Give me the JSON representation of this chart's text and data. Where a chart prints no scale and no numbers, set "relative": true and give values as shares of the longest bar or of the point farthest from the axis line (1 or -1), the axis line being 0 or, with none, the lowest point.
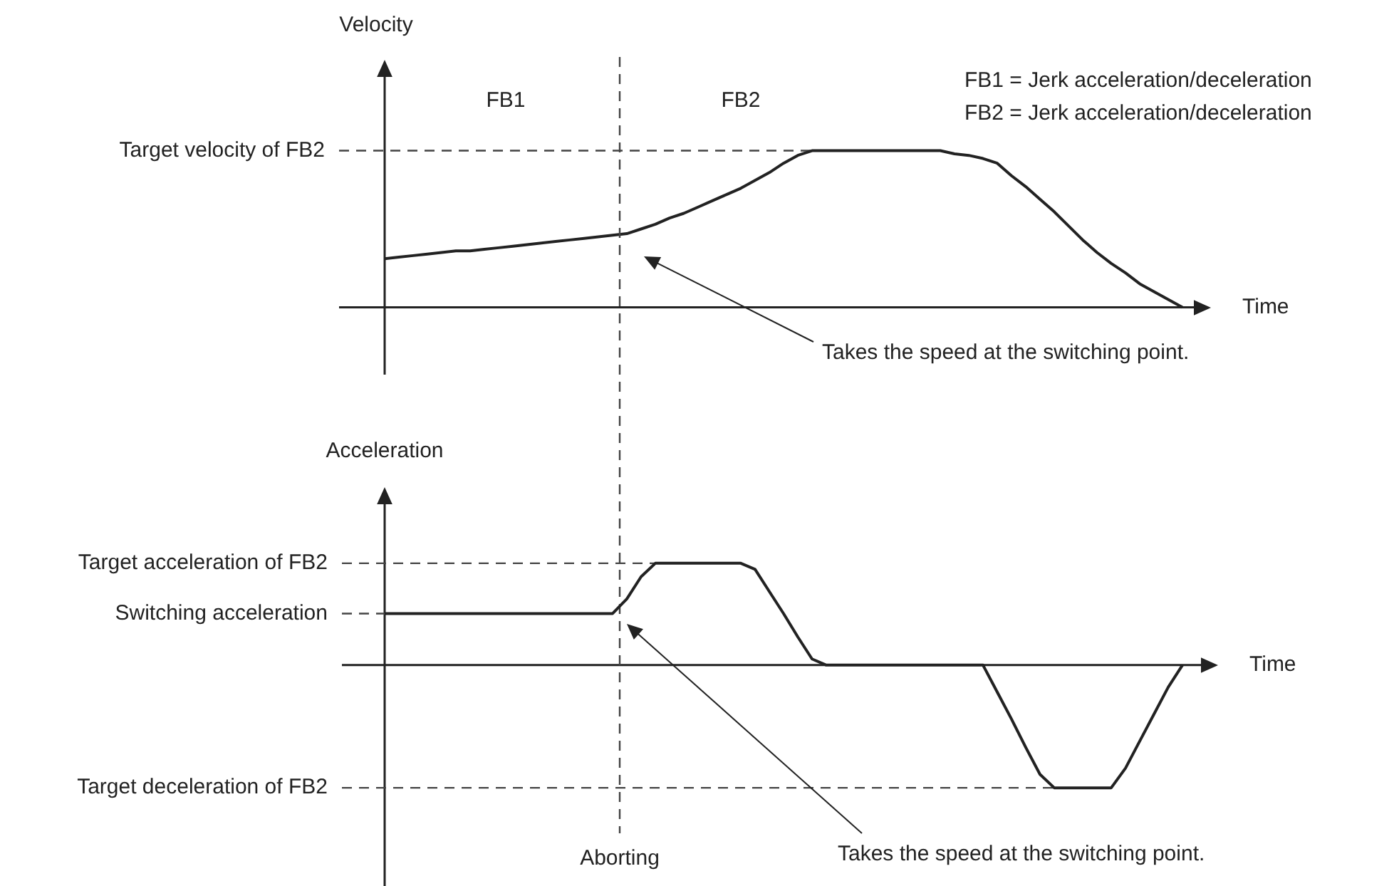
{
  "chart_data": [
    {
      "type": "line",
      "relative": true,
      "xlabel": "Time",
      "ylabel": "Velocity",
      "categories": [
        null,
        null,
        null,
        null,
        null,
        null,
        null,
        null,
        null,
        null,
        null,
        null,
        null,
        null,
        null,
        null,
        null,
        null,
        null,
        null,
        null,
        null,
        null,
        null,
        null,
        null,
        null,
        null,
        null,
        null,
        null,
        null,
        null,
        null,
        null,
        null,
        null,
        null,
        null,
        null,
        null,
        null,
        null,
        null,
        null,
        null,
        null,
        null,
        null,
        null,
        null,
        null,
        null,
        null,
        null,
        null,
        null
      ],
      "series": [
        {
          "color": "#222222",
          "values": [
            0.31,
            0.32,
            0.33,
            0.34,
            0.35,
            0.36,
            0.36,
            0.37,
            0.38,
            0.39,
            0.4,
            0.41,
            0.42,
            0.43,
            0.44,
            0.45,
            0.46,
            0.47,
            0.5,
            0.53,
            0.57,
            0.6,
            0.64,
            0.68,
            0.72,
            0.76,
            0.81,
            0.86,
            0.92,
            0.97,
            1,
            1,
            1,
            1,
            1,
            1,
            1,
            1,
            1,
            1,
            0.98,
            0.97,
            0.95,
            0.92,
            0.84,
            0.77,
            0.69,
            0.61,
            0.52,
            0.43,
            0.35,
            0.28,
            0.22,
            0.15,
            0.1,
            0.05,
            0
          ]
        }
      ],
      "ref_lines": [
        {
          "axis": "y",
          "value": 1,
          "label": "Target velocity of FB2"
        }
      ],
      "annotations": [
        "FB1",
        "FB2",
        "FB1 = Jerk acceleration/deceleration",
        "FB2 = Jerk acceleration/deceleration",
        "Takes the speed at the switching point."
      ]
    },
    {
      "type": "line",
      "relative": true,
      "xlabel": "Time",
      "ylabel": "Acceleration",
      "categories": [
        null,
        null,
        null,
        null,
        null,
        null,
        null,
        null,
        null,
        null,
        null,
        null,
        null,
        null,
        null,
        null,
        null,
        null,
        null,
        null,
        null,
        null,
        null,
        null,
        null,
        null,
        null,
        null,
        null,
        null,
        null,
        null,
        null,
        null,
        null,
        null,
        null,
        null,
        null,
        null,
        null,
        null,
        null,
        null,
        null,
        null,
        null,
        null,
        null,
        null,
        null,
        null,
        null,
        null,
        null,
        null,
        null
      ],
      "series": [
        {
          "color": "#222222",
          "values": [
            0.42,
            0.42,
            0.42,
            0.42,
            0.42,
            0.42,
            0.42,
            0.42,
            0.42,
            0.42,
            0.42,
            0.42,
            0.42,
            0.42,
            0.42,
            0.42,
            0.42,
            0.54,
            0.72,
            0.83,
            0.83,
            0.83,
            0.83,
            0.83,
            0.83,
            0.83,
            0.78,
            0.6,
            0.42,
            0.23,
            0.05,
            0,
            0,
            0,
            0,
            0,
            0,
            0,
            0,
            0,
            0,
            0,
            0,
            -0.22,
            -0.44,
            -0.67,
            -0.89,
            -1,
            -1,
            -1,
            -1,
            -1,
            -0.84,
            -0.62,
            -0.4,
            -0.18,
            0
          ]
        }
      ],
      "ref_lines": [
        {
          "axis": "y",
          "value": 0.83,
          "label": "Target acceleration of FB2"
        },
        {
          "axis": "y",
          "value": 0.42,
          "label": "Switching acceleration"
        },
        {
          "axis": "y",
          "value": -1,
          "label": "Target deceleration of FB2"
        },
        {
          "axis": "x",
          "label": "Aborting"
        }
      ],
      "annotations": [
        "Takes the speed at the switching point."
      ]
    }
  ]
}
